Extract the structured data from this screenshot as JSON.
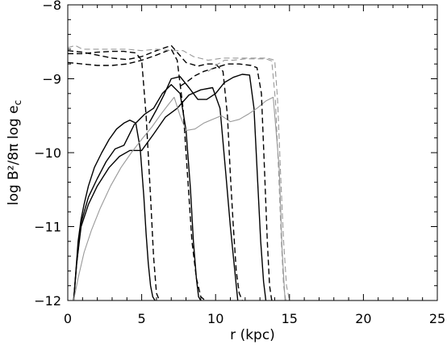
{
  "chart_data": {
    "type": "line",
    "xlabel": "r (kpc)",
    "ylabel": "log B²/8π   log e",
    "ylabel_subscript": "c",
    "xlim": [
      0,
      25
    ],
    "ylim": [
      -12,
      -8
    ],
    "xticks": [
      0,
      5,
      10,
      15,
      20,
      25
    ],
    "yticks": [
      -12,
      -11,
      -10,
      -9,
      -8
    ],
    "xtick_labels": [
      "0",
      "5",
      "10",
      "15",
      "20",
      "25"
    ],
    "ytick_labels": [
      "−12",
      "−11",
      "−10",
      "−9",
      "−8"
    ],
    "grid": false,
    "legend": "none",
    "series": [
      {
        "style": "solid",
        "color": "#000000",
        "x": [
          0.4,
          0.55,
          0.7,
          0.9,
          1.1,
          1.4,
          1.8,
          2.3,
          2.8,
          3.3,
          3.8,
          4.2,
          4.6,
          4.9,
          5.15,
          5.3,
          5.45,
          5.6,
          5.75,
          5.9
        ],
        "y": [
          -12.0,
          -11.6,
          -11.2,
          -10.9,
          -10.7,
          -10.45,
          -10.2,
          -10.0,
          -9.82,
          -9.68,
          -9.6,
          -9.56,
          -9.6,
          -9.95,
          -10.6,
          -11.1,
          -11.5,
          -11.8,
          -11.95,
          -12.0
        ]
      },
      {
        "style": "solid",
        "color": "#000000",
        "x": [
          0.4,
          0.6,
          0.9,
          1.4,
          2.0,
          2.6,
          3.2,
          3.8,
          4.5,
          5.2,
          5.8,
          6.4,
          7.0,
          7.6,
          8.0,
          8.3,
          8.5,
          8.7,
          8.85,
          9.0
        ],
        "y": [
          -12.0,
          -11.5,
          -10.95,
          -10.6,
          -10.35,
          -10.12,
          -9.95,
          -9.9,
          -9.62,
          -9.48,
          -9.4,
          -9.2,
          -9.08,
          -9.2,
          -9.7,
          -10.5,
          -11.2,
          -11.7,
          -11.95,
          -12.0
        ]
      },
      {
        "style": "solid",
        "color": "#000000",
        "x": [
          0.4,
          0.6,
          0.9,
          1.4,
          2.0,
          2.8,
          3.5,
          4.2,
          5.0,
          5.8,
          6.6,
          7.4,
          8.2,
          9.0,
          9.8,
          10.3,
          10.7,
          11.0,
          11.3,
          11.5
        ],
        "y": [
          -12.0,
          -11.5,
          -11.0,
          -10.7,
          -10.45,
          -10.2,
          -10.05,
          -9.97,
          -9.97,
          -9.75,
          -9.52,
          -9.4,
          -9.22,
          -9.15,
          -9.12,
          -9.4,
          -10.3,
          -11.0,
          -11.6,
          -12.0
        ]
      },
      {
        "style": "solid",
        "color": "#000000",
        "x": [
          5.5,
          6.0,
          6.5,
          7.0,
          7.6,
          8.2,
          8.8,
          9.4,
          10.0,
          10.6,
          11.2,
          11.8,
          12.3,
          12.6,
          12.85,
          13.05,
          13.25,
          13.4
        ],
        "y": [
          -9.6,
          -9.42,
          -9.22,
          -9.0,
          -8.97,
          -9.12,
          -9.28,
          -9.28,
          -9.2,
          -9.05,
          -8.98,
          -8.94,
          -8.95,
          -9.4,
          -10.4,
          -11.2,
          -11.75,
          -12.0
        ]
      },
      {
        "style": "solid",
        "color": "#999999",
        "x": [
          0.4,
          0.7,
          1.1,
          1.6,
          2.2,
          2.9,
          3.6,
          4.3,
          5.0,
          5.7,
          6.3,
          6.8,
          7.2,
          7.6,
          8.0,
          8.6,
          9.2,
          9.8,
          10.4,
          11.0,
          11.6,
          12.2,
          12.8,
          13.4,
          13.9,
          14.3,
          14.5,
          14.7
        ],
        "y": [
          -12.0,
          -11.7,
          -11.35,
          -11.05,
          -10.75,
          -10.45,
          -10.2,
          -10.0,
          -9.82,
          -9.65,
          -9.48,
          -9.35,
          -9.25,
          -9.5,
          -9.7,
          -9.68,
          -9.6,
          -9.55,
          -9.5,
          -9.58,
          -9.55,
          -9.48,
          -9.4,
          -9.3,
          -9.25,
          -10.2,
          -11.3,
          -12.0
        ]
      },
      {
        "style": "dashed",
        "color": "#000000",
        "x": [
          0.0,
          1.0,
          2.0,
          3.0,
          3.8,
          4.6,
          5.0,
          5.3,
          5.6,
          5.8,
          6.0,
          6.2
        ],
        "y": [
          -8.66,
          -8.66,
          -8.64,
          -8.63,
          -8.63,
          -8.65,
          -8.75,
          -9.5,
          -10.6,
          -11.4,
          -11.9,
          -12.0
        ]
      },
      {
        "style": "dashed",
        "color": "#000000",
        "x": [
          0.0,
          1.0,
          2.0,
          3.0,
          4.0,
          5.0,
          6.0,
          7.0,
          7.4,
          7.8,
          8.1,
          8.4,
          8.7,
          9.0,
          9.3
        ],
        "y": [
          -8.78,
          -8.8,
          -8.82,
          -8.82,
          -8.8,
          -8.75,
          -8.68,
          -8.6,
          -8.75,
          -9.4,
          -10.3,
          -11.2,
          -11.7,
          -11.95,
          -12.0
        ]
      },
      {
        "style": "dashed",
        "color": "#000000",
        "x": [
          0.0,
          1.0,
          2.0,
          3.0,
          4.0,
          5.0,
          6.0,
          7.0,
          8.0,
          8.8,
          9.4,
          10.0,
          10.5,
          10.8,
          11.0,
          11.2,
          11.4,
          11.6,
          11.8
        ],
        "y": [
          -8.62,
          -8.64,
          -8.68,
          -8.72,
          -8.74,
          -8.7,
          -8.62,
          -8.55,
          -8.78,
          -8.83,
          -8.8,
          -8.8,
          -8.9,
          -9.5,
          -10.3,
          -11.0,
          -11.6,
          -11.9,
          -12.0
        ]
      },
      {
        "style": "dashed",
        "color": "#000000",
        "x": [
          7.6,
          8.0,
          8.6,
          9.2,
          10.0,
          10.8,
          11.6,
          12.4,
          12.8,
          13.1,
          13.3,
          13.5,
          13.65,
          13.8
        ],
        "y": [
          -9.1,
          -9.05,
          -8.96,
          -8.9,
          -8.85,
          -8.8,
          -8.8,
          -8.82,
          -8.85,
          -9.2,
          -10.2,
          -11.2,
          -11.8,
          -12.0
        ]
      },
      {
        "style": "dashed",
        "color": "#999999",
        "x": [
          0.0,
          0.5,
          1.0,
          2.0,
          3.0,
          4.0,
          5.0,
          6.0,
          7.0,
          7.8,
          8.5,
          9.5,
          10.5,
          11.5,
          12.5,
          13.5,
          14.0,
          14.2,
          14.4,
          14.6,
          14.8,
          15.0
        ],
        "y": [
          -8.58,
          -8.55,
          -8.6,
          -8.6,
          -8.6,
          -8.6,
          -8.62,
          -8.6,
          -8.62,
          -8.62,
          -8.7,
          -8.75,
          -8.72,
          -8.72,
          -8.72,
          -8.72,
          -8.75,
          -9.3,
          -10.3,
          -11.2,
          -11.8,
          -12.0
        ]
      },
      {
        "style": "dashed",
        "color": "#999999",
        "x": [
          9.5,
          10.0,
          10.6,
          11.2,
          12.0,
          12.8,
          13.4,
          13.8,
          14.05,
          14.25,
          14.45,
          14.6,
          14.75
        ],
        "y": [
          -8.9,
          -8.82,
          -8.75,
          -8.75,
          -8.73,
          -8.73,
          -8.73,
          -8.76,
          -9.3,
          -10.2,
          -11.2,
          -11.8,
          -12.0
        ]
      }
    ]
  }
}
